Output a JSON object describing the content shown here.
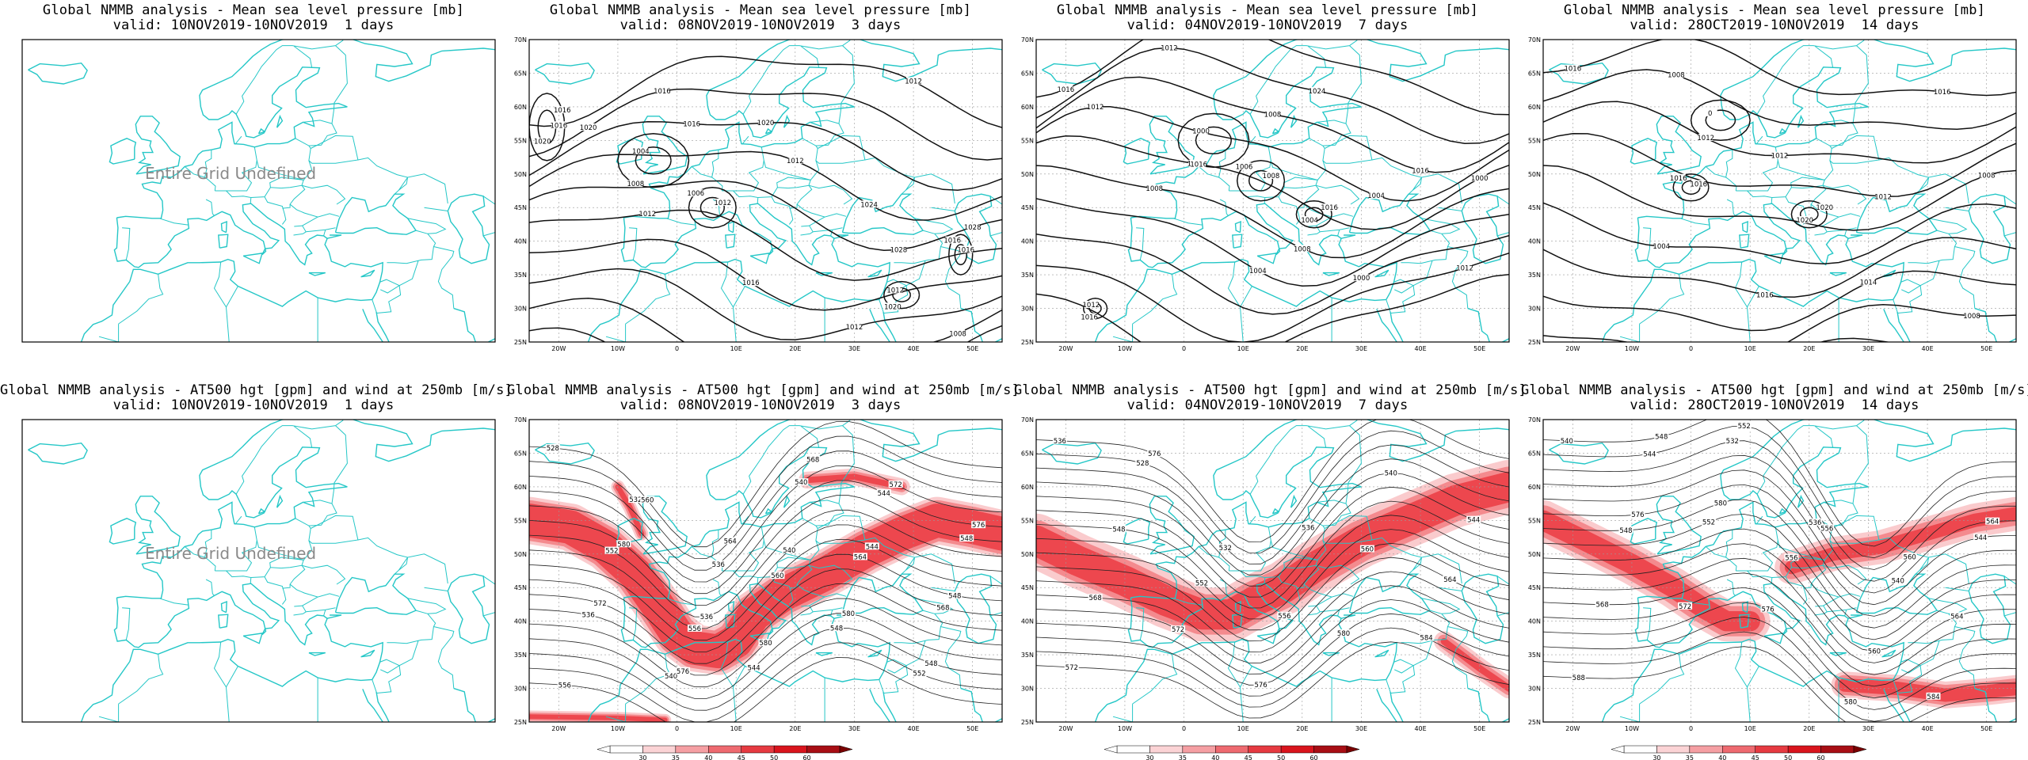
{
  "lat_ticks": [
    "70N",
    "65N",
    "60N",
    "55N",
    "50N",
    "45N",
    "40N",
    "35N",
    "30N",
    "25N"
  ],
  "lon_ticks": [
    "20W",
    "10W",
    "0",
    "10E",
    "20E",
    "30E",
    "40E",
    "50E"
  ],
  "colorbar": [
    "30",
    "35",
    "40",
    "45",
    "50",
    "60"
  ],
  "colors": {
    "coast": "#25c7c7",
    "contour": "#111111",
    "wind": "#e8101a",
    "grid": "#9a9a9a",
    "undef": "#8a8a8a"
  },
  "panels": [
    {
      "title1": "Global NMMB analysis - Mean sea level pressure [mb]",
      "title2": "valid: 10NOV2019-10NOV2019  1 days",
      "type": "mslp",
      "undefined": "Entire Grid Undefined"
    },
    {
      "title1": "Global NMMB analysis - Mean sea level pressure [mb]",
      "title2": "valid: 08NOV2019-10NOV2019  3 days",
      "type": "mslp",
      "contour_labels": [
        "1016",
        "1016",
        "1020",
        "1024",
        "1028",
        "1012",
        "1016",
        "1012",
        "1008",
        "1008",
        "1004",
        "1008",
        "1012",
        "1006",
        "1020",
        "1016",
        "1012",
        "1020",
        "1016",
        "1016",
        "1012",
        "1020",
        "1016",
        "1012",
        "1028"
      ]
    },
    {
      "title1": "Global NMMB analysis - Mean sea level pressure [mb]",
      "title2": "valid: 04NOV2019-10NOV2019  7 days",
      "type": "mslp",
      "contour_labels": [
        "1016",
        "1012",
        "1008",
        "1004",
        "1000",
        "1008",
        "1004",
        "1000",
        "1012",
        "1008",
        "1000",
        "1004",
        "1008",
        "1006",
        "1004",
        "1016",
        "1012",
        "1016",
        "1020",
        "1024",
        "1016",
        "1012",
        "1016",
        "1008"
      ]
    },
    {
      "title1": "Global NMMB analysis - Mean sea level pressure [mb]",
      "title2": "valid: 28OCT2019-10NOV2019  14 days",
      "type": "mslp",
      "contour_labels": [
        "1016",
        "1008",
        "1012",
        "1012",
        "1008",
        "1004",
        "1016",
        "1014",
        "1008",
        "1016",
        "0",
        "1012",
        "1016",
        "1016",
        "1020",
        "1020",
        "1016"
      ]
    },
    {
      "title1": "Global NMMB analysis - AT500 hgt [gpm] and wind at 250mb [m/s]",
      "title2": "valid: 10NOV2019-10NOV2019  1 days",
      "type": "z500",
      "undefined": "Entire Grid Undefined"
    },
    {
      "title1": "Global NMMB analysis - AT500 hgt [gpm] and wind at 250mb [m/s]",
      "title2": "valid: 08NOV2019-10NOV2019  3 days",
      "type": "z500",
      "contour_labels": [
        "528",
        "532",
        "536",
        "540",
        "544",
        "548",
        "552",
        "556",
        "560",
        "564",
        "568",
        "536",
        "540",
        "544",
        "548",
        "552",
        "556",
        "560",
        "564",
        "568",
        "572",
        "576",
        "580",
        "536",
        "540",
        "544",
        "548",
        "572",
        "576",
        "580",
        "580",
        "548"
      ]
    },
    {
      "title1": "Global NMMB analysis - AT500 hgt [gpm] and wind at 250mb [m/s]",
      "title2": "valid: 04NOV2019-10NOV2019  7 days",
      "type": "z500",
      "contour_labels": [
        "536",
        "528",
        "532",
        "536",
        "540",
        "544",
        "548",
        "552",
        "556",
        "560",
        "564",
        "568",
        "572",
        "576",
        "580",
        "584",
        "572",
        "576"
      ]
    },
    {
      "title1": "Global NMMB analysis - AT500 hgt [gpm] and wind at 250mb [m/s]",
      "title2": "valid: 28OCT2019-10NOV2019  14 days",
      "type": "z500",
      "contour_labels": [
        "540",
        "544",
        "532",
        "536",
        "540",
        "544",
        "548",
        "552",
        "556",
        "560",
        "564",
        "568",
        "572",
        "576",
        "580",
        "584",
        "588",
        "548",
        "552",
        "556",
        "560",
        "564",
        "576",
        "580"
      ]
    }
  ]
}
